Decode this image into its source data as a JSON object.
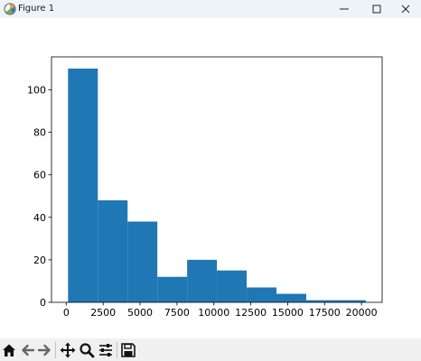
{
  "window": {
    "title": "Figure 1",
    "icons": [
      "matplotlib-logo-icon",
      "minimize-icon",
      "maximize-icon",
      "close-icon"
    ]
  },
  "toolbar": {
    "buttons": [
      "home-icon",
      "back-icon",
      "forward-icon",
      "pan-icon",
      "zoom-icon",
      "configure-subplots-icon",
      "save-icon"
    ]
  },
  "chart_data": {
    "type": "bar",
    "title": "",
    "xlabel": "",
    "ylabel": "",
    "bar_color": "#1f77b4",
    "bin_edges": [
      121,
      2138,
      4155,
      6172,
      8189,
      10206,
      12223,
      14240,
      16257,
      18274,
      20291
    ],
    "values": [
      110,
      48,
      38,
      12,
      20,
      15,
      7,
      4,
      1,
      1
    ],
    "xlim": [
      -1000,
      21400
    ],
    "ylim": [
      0,
      115.5
    ],
    "xticks": [
      0,
      2500,
      5000,
      7500,
      10000,
      12500,
      15000,
      17500,
      20000
    ],
    "xtick_labels": [
      "0",
      "2500",
      "5000",
      "7500",
      "10000",
      "12500",
      "15000",
      "17500",
      "20000"
    ],
    "yticks": [
      0,
      20,
      40,
      60,
      80,
      100
    ],
    "ytick_labels": [
      "0",
      "20",
      "40",
      "60",
      "80",
      "100"
    ],
    "grid": false,
    "legend": "none"
  }
}
